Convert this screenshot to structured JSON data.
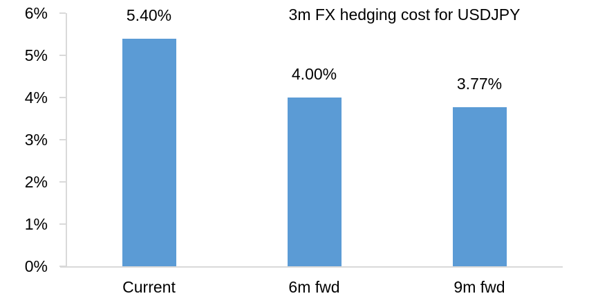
{
  "chart_data": {
    "type": "bar",
    "title": "3m FX hedging cost for USDJPY",
    "categories": [
      "Current",
      "6m fwd",
      "9m fwd"
    ],
    "values": [
      5.4,
      4.0,
      3.77
    ],
    "value_labels": [
      "5.40%",
      "4.00%",
      "3.77%"
    ],
    "xlabel": "",
    "ylabel": "",
    "ylim": [
      0,
      6
    ],
    "ytick_labels": [
      "0%",
      "1%",
      "2%",
      "3%",
      "4%",
      "5%",
      "6%"
    ],
    "grid": false,
    "legend": "none",
    "colors": {
      "bar": "#5B9BD5",
      "axis": "#D9D9D9",
      "text": "#000000",
      "background": "#FFFFFF"
    }
  }
}
